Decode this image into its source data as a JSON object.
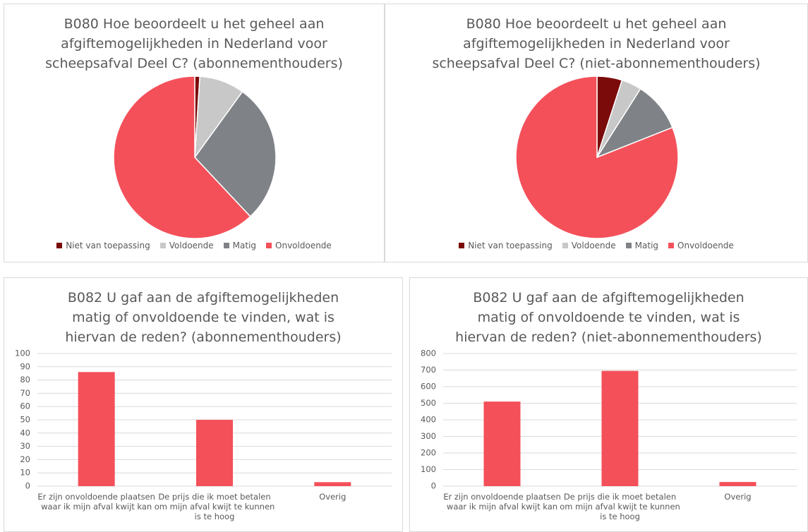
{
  "chart_data": [
    {
      "type": "pie",
      "title": "B080 Hoe beoordeelt u het geheel aan afgiftemogelijkheden in Nederland voor scheepsafval Deel C? (abonnementhouders)",
      "categories": [
        "Niet van toepassing",
        "Voldoende",
        "Matig",
        "Onvoldoende"
      ],
      "values": [
        1,
        9,
        28,
        62
      ],
      "colors": [
        "#7b0a0a",
        "#c8c8c8",
        "#7f8286",
        "#f4505a"
      ],
      "legend": "bottom"
    },
    {
      "type": "pie",
      "title": "B080 Hoe beoordeelt u het geheel aan afgiftemogelijkheden in Nederland voor scheepsafval Deel C? (niet-abonnementhouders)",
      "categories": [
        "Niet van toepassing",
        "Voldoende",
        "Matig",
        "Onvoldoende"
      ],
      "values": [
        5,
        4,
        10,
        81
      ],
      "colors": [
        "#7b0a0a",
        "#c8c8c8",
        "#7f8286",
        "#f4505a"
      ],
      "legend": "bottom"
    },
    {
      "type": "bar",
      "title": "B082 U gaf aan de afgiftemogelijkheden matig of onvoldoende te vinden, wat is hiervan de reden? (abonnementhouders)",
      "categories": [
        "Er zijn onvoldoende plaatsen waar ik mijn afval kwijt kan",
        "De prijs die ik moet betalen om mijn afval kwijt te kunnen is te hoog",
        "Overig"
      ],
      "values": [
        86,
        50,
        3
      ],
      "color": "#f4505a",
      "ylim": [
        0,
        100
      ],
      "yticks": [
        0,
        10,
        20,
        30,
        40,
        50,
        60,
        70,
        80,
        90,
        100
      ],
      "grid": true
    },
    {
      "type": "bar",
      "title": "B082 U gaf aan de afgiftemogelijkheden matig of onvoldoende te vinden, wat is hiervan de reden? (niet-abonnementhouders)",
      "categories": [
        "Er zijn onvoldoende plaatsen waar ik mijn afval kwijt kan",
        "De prijs die ik moet betalen om mijn afval kwijt te kunnen is te hoog",
        "Overig"
      ],
      "values": [
        510,
        695,
        25
      ],
      "color": "#f4505a",
      "ylim": [
        0,
        800
      ],
      "yticks": [
        0,
        100,
        200,
        300,
        400,
        500,
        600,
        700,
        800
      ],
      "grid": true
    }
  ]
}
